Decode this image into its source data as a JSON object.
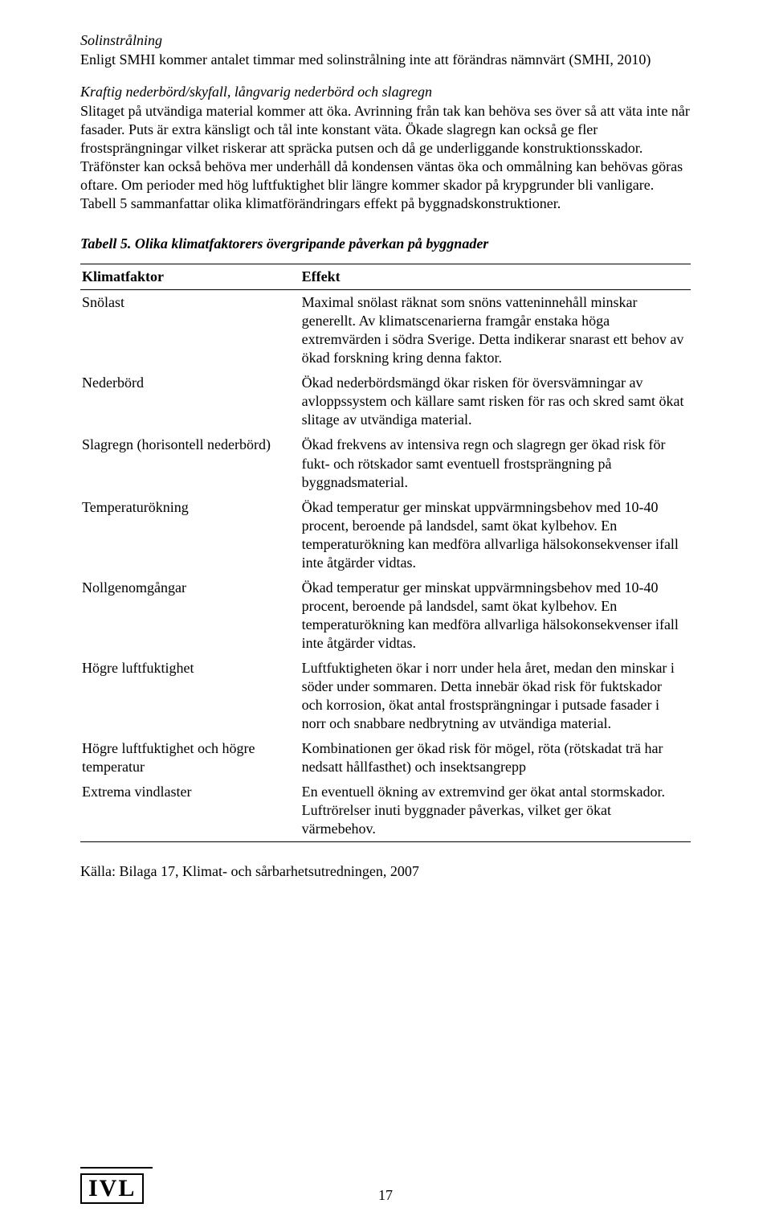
{
  "heading1": "Solinstrålning",
  "p1": "Enligt SMHI kommer antalet timmar med solinstrålning inte att förändras nämnvärt (SMHI, 2010)",
  "heading2": "Kraftig nederbörd/skyfall, långvarig nederbörd och slagregn",
  "p2": "Slitaget på utvändiga material kommer att öka. Avrinning från tak kan behöva ses över så att väta inte når fasader. Puts är extra känsligt och tål inte konstant väta. Ökade slagregn kan också ge fler frostsprängningar vilket riskerar att spräcka putsen och då ge underliggande konstruktionsskador. Träfönster kan också behöva mer underhåll då kondensen väntas öka och ommålning kan behövas göras oftare. Om perioder med hög luftfuktighet blir längre kommer skador på krypgrunder bli vanligare. Tabell 5 sammanfattar olika klimatförändringars effekt på byggnadskonstruktioner.",
  "tableCaption": "Tabell 5. Olika klimatfaktorers övergripande påverkan på byggnader",
  "th1": "Klimatfaktor",
  "th2": "Effekt",
  "rows": [
    {
      "k": "Snölast",
      "e": "Maximal snölast räknat som snöns vatteninnehåll minskar generellt. Av klimatscenarierna framgår enstaka höga extremvärden i södra Sverige. Detta indikerar snarast ett behov av ökad forskning kring denna faktor."
    },
    {
      "k": "Nederbörd",
      "e": "Ökad nederbördsmängd ökar risken för översvämningar av avloppssystem och källare samt risken för ras och skred samt ökat slitage av utvändiga material."
    },
    {
      "k": "Slagregn (horisontell nederbörd)",
      "e": "Ökad frekvens av intensiva regn och slagregn ger ökad risk för fukt- och rötskador samt eventuell frostsprängning på byggnadsmaterial."
    },
    {
      "k": "Temperaturökning",
      "e": "Ökad temperatur ger minskat uppvärmningsbehov med 10-40 procent, beroende på landsdel, samt ökat kylbehov. En temperaturökning kan medföra allvarliga hälsokonsekvenser ifall inte åtgärder vidtas."
    },
    {
      "k": "Nollgenomgångar",
      "e": "Ökad temperatur ger minskat uppvärmningsbehov med 10-40 procent, beroende på landsdel, samt ökat kylbehov. En temperaturökning kan medföra allvarliga hälsokonsekvenser ifall inte åtgärder vidtas."
    },
    {
      "k": "Högre luftfuktighet",
      "e": "Luftfuktigheten ökar i norr under hela året, medan den minskar i söder under sommaren. Detta innebär ökad risk för fuktskador och korrosion, ökat antal frostsprängningar i putsade fasader i norr och snabbare nedbrytning av utvändiga material."
    },
    {
      "k": "Högre luftfuktighet och högre temperatur",
      "e": "Kombinationen ger ökad risk för mögel, röta (rötskadat trä har nedsatt hållfasthet) och insektsangrepp"
    },
    {
      "k": "Extrema vindlaster",
      "e": "En eventuell ökning av extremvind ger ökat antal stormskador. Luftrörelser inuti byggnader påverkas, vilket ger ökat värmebehov."
    }
  ],
  "source": "Källa: Bilaga 17, Klimat- och sårbarhetsutredningen, 2007",
  "logo": "IVL",
  "pageNumber": "17"
}
